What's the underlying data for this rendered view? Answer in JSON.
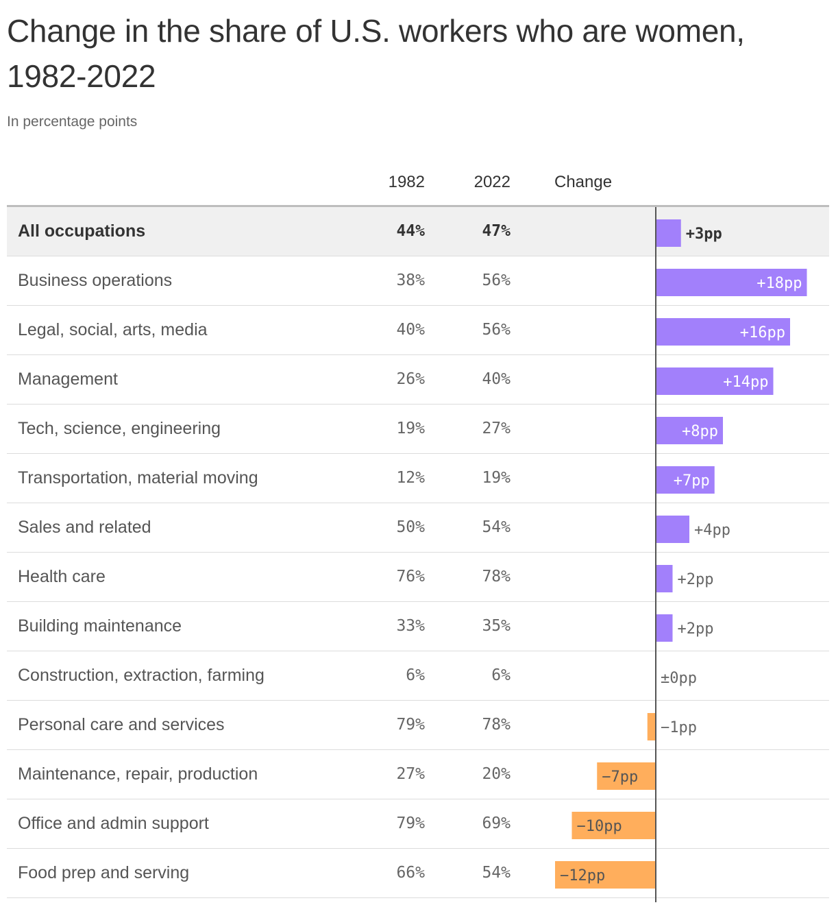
{
  "title": "Change in the share of U.S. workers who are women, 1982-2022",
  "subtitle": "In percentage points",
  "columns": {
    "c1982": "1982",
    "c2022": "2022",
    "change": "Change"
  },
  "colors": {
    "positive": "#a280fb",
    "negative": "#ffae5c",
    "axis": "#555555"
  },
  "chart_data": {
    "type": "bar",
    "orientation": "horizontal",
    "title": "Change in the share of U.S. workers who are women, 1982-2022",
    "subtitle": "In percentage points",
    "categories": [
      "All occupations",
      "Business operations",
      "Legal, social, arts, media",
      "Management",
      "Tech, science, engineering",
      "Transportation, material moving",
      "Sales and related",
      "Health care",
      "Building maintenance",
      "Construction, extraction, farming",
      "Personal care and services",
      "Maintenance, repair, production",
      "Office and admin support",
      "Food prep and serving"
    ],
    "values": [
      3,
      18,
      16,
      14,
      8,
      7,
      4,
      2,
      2,
      0,
      -1,
      -7,
      -10,
      -12
    ],
    "data_labels": [
      "+3pp",
      "+18pp",
      "+16pp",
      "+14pp",
      "+8pp",
      "+7pp",
      "+4pp",
      "+2pp",
      "+2pp",
      "±0pp",
      "−1pp",
      "−7pp",
      "−10pp",
      "−12pp"
    ],
    "xlim": [
      -12,
      20
    ]
  },
  "rows": [
    {
      "label": "All occupations",
      "v1982": "44%",
      "v2022": "47%",
      "change": 3,
      "change_label": "+3pp",
      "highlight": true
    },
    {
      "label": "Business operations",
      "v1982": "38%",
      "v2022": "56%",
      "change": 18,
      "change_label": "+18pp"
    },
    {
      "label": "Legal, social, arts, media",
      "v1982": "40%",
      "v2022": "56%",
      "change": 16,
      "change_label": "+16pp"
    },
    {
      "label": "Management",
      "v1982": "26%",
      "v2022": "40%",
      "change": 14,
      "change_label": "+14pp"
    },
    {
      "label": "Tech, science, engineering",
      "v1982": "19%",
      "v2022": "27%",
      "change": 8,
      "change_label": "+8pp"
    },
    {
      "label": "Transportation, material moving",
      "v1982": "12%",
      "v2022": "19%",
      "change": 7,
      "change_label": "+7pp"
    },
    {
      "label": "Sales and related",
      "v1982": "50%",
      "v2022": "54%",
      "change": 4,
      "change_label": "+4pp"
    },
    {
      "label": "Health care",
      "v1982": "76%",
      "v2022": "78%",
      "change": 2,
      "change_label": "+2pp"
    },
    {
      "label": "Building maintenance",
      "v1982": "33%",
      "v2022": "35%",
      "change": 2,
      "change_label": "+2pp"
    },
    {
      "label": "Construction, extraction, farming",
      "v1982": "6%",
      "v2022": "6%",
      "change": 0,
      "change_label": "±0pp"
    },
    {
      "label": "Personal care and services",
      "v1982": "79%",
      "v2022": "78%",
      "change": -1,
      "change_label": "−1pp"
    },
    {
      "label": "Maintenance, repair, production",
      "v1982": "27%",
      "v2022": "20%",
      "change": -7,
      "change_label": "−7pp"
    },
    {
      "label": "Office and admin support",
      "v1982": "79%",
      "v2022": "69%",
      "change": -10,
      "change_label": "−10pp"
    },
    {
      "label": "Food prep and serving",
      "v1982": "66%",
      "v2022": "54%",
      "change": -12,
      "change_label": "−12pp"
    }
  ]
}
